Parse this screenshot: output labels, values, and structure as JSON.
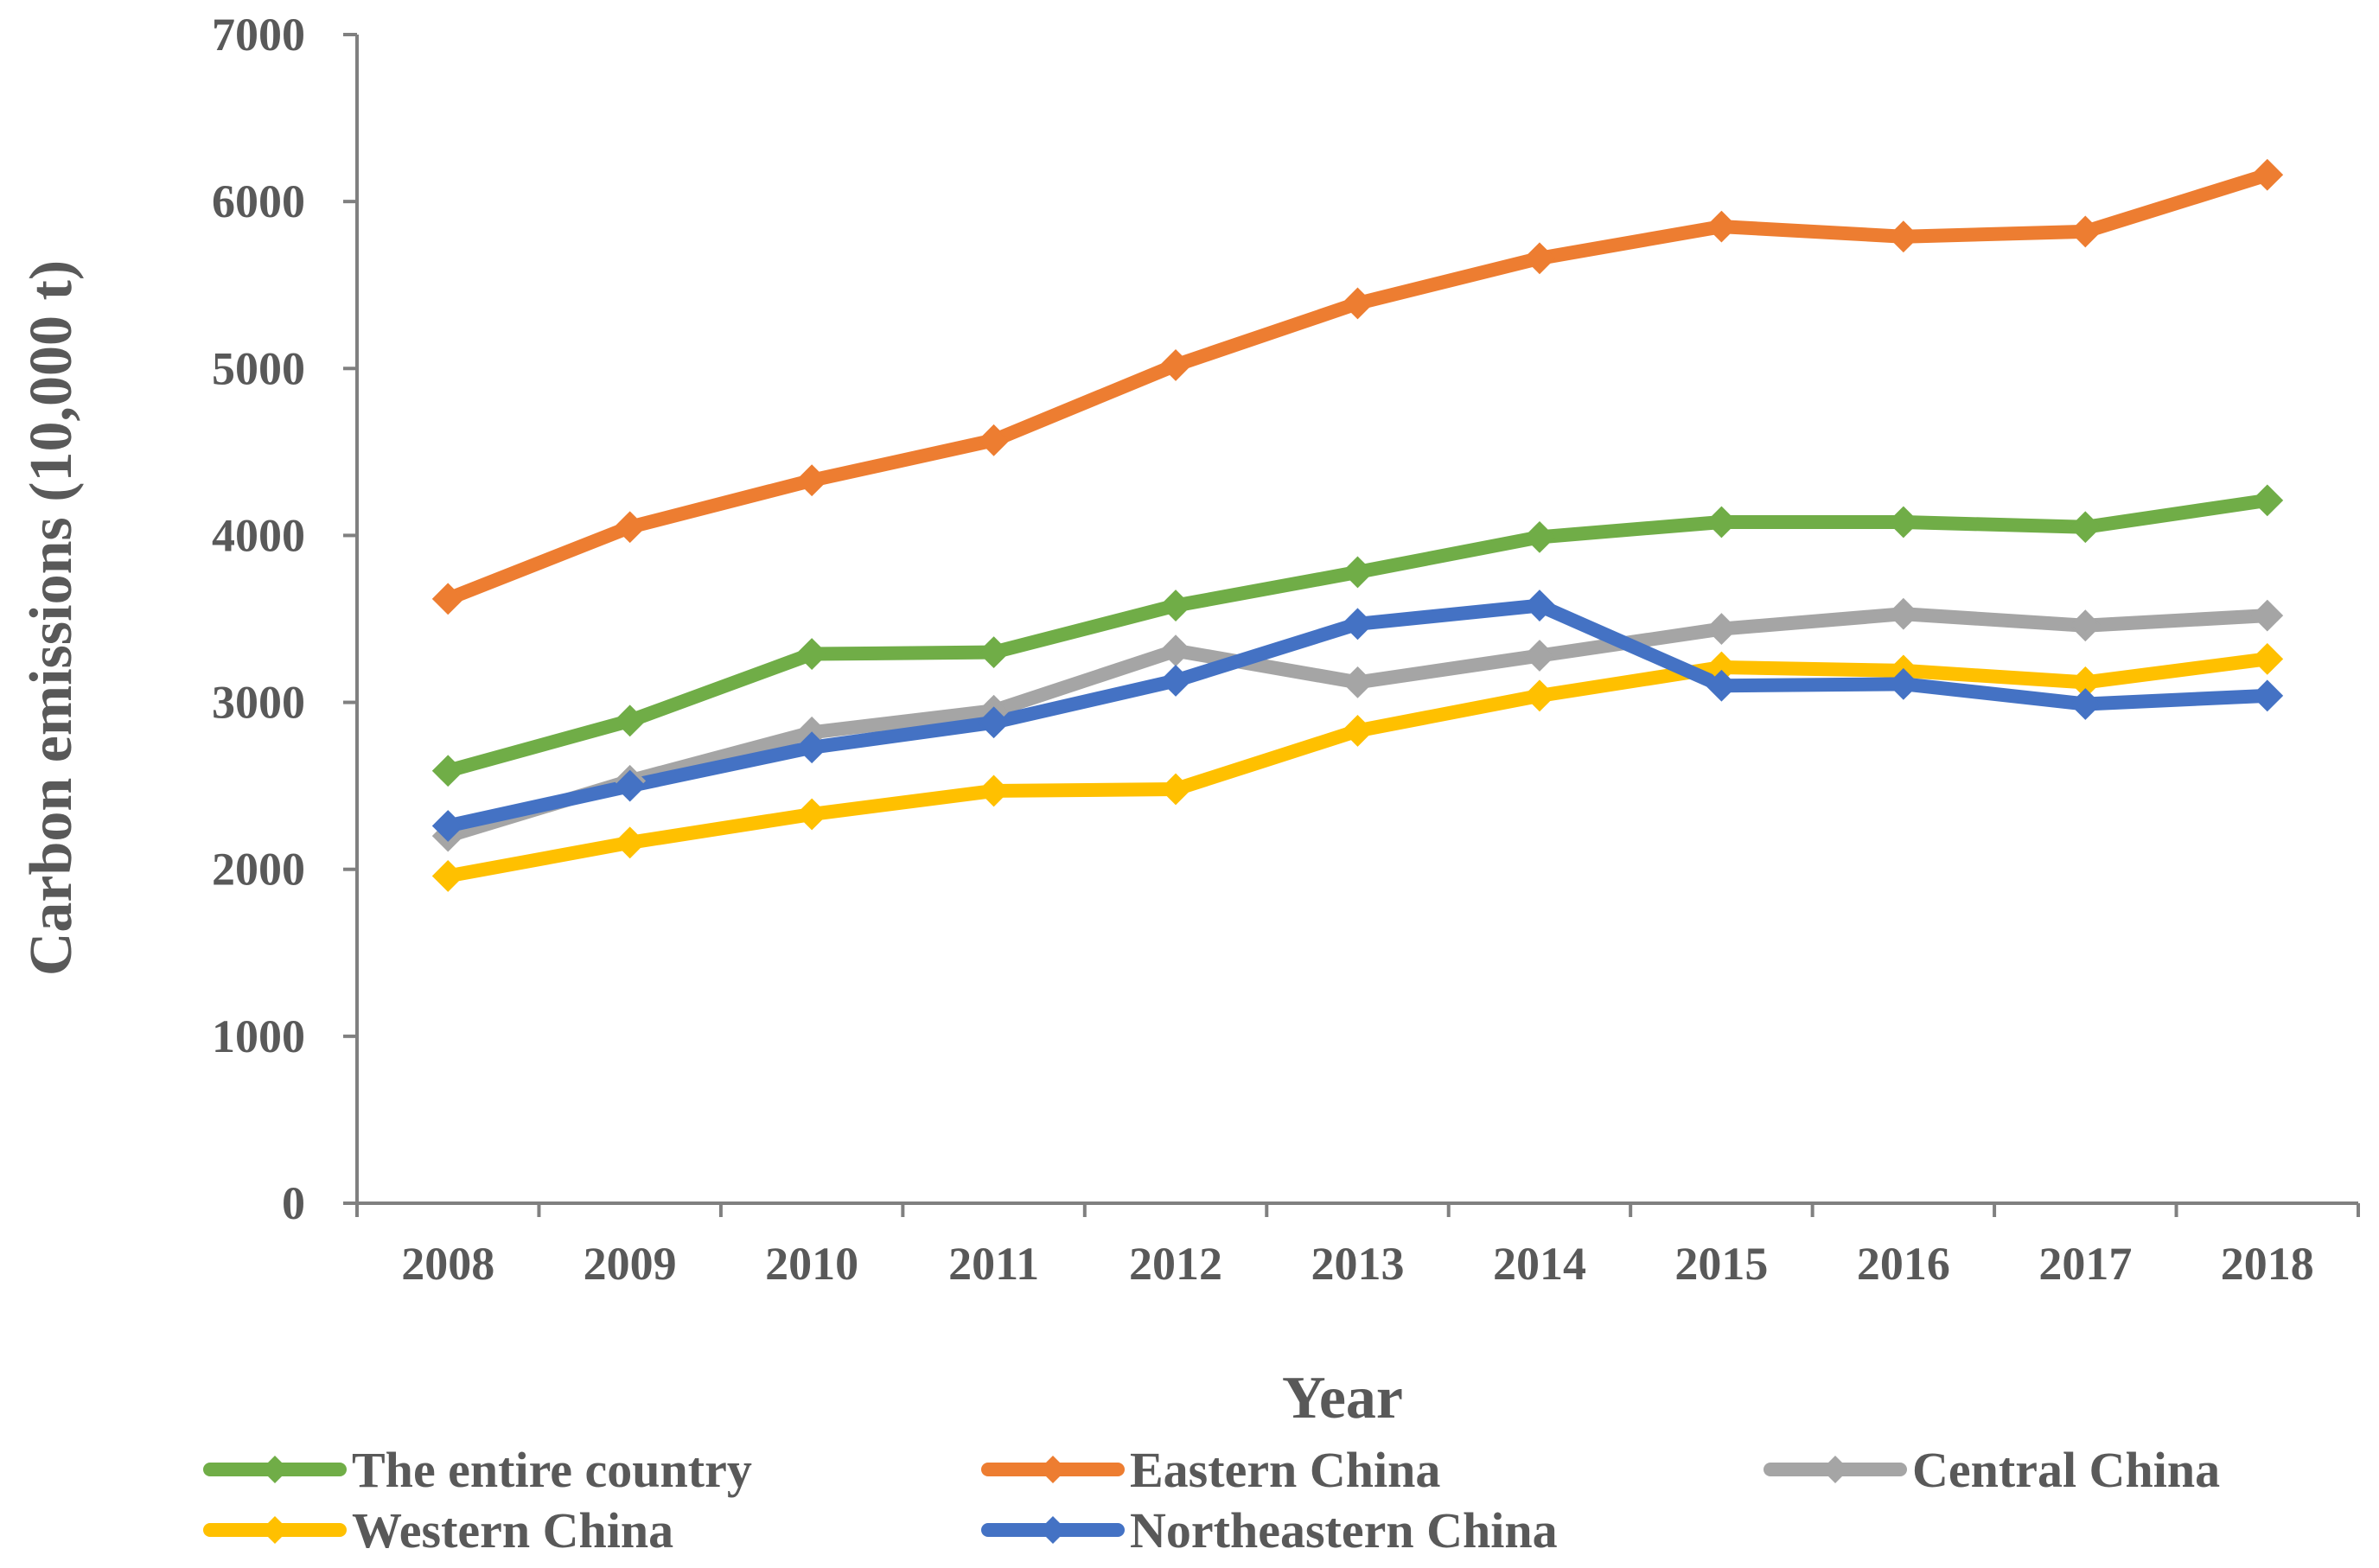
{
  "chart_data": {
    "type": "line",
    "title": "",
    "xlabel": "Year",
    "ylabel": "Carbon emissions (10,000 t)",
    "ylim": [
      0,
      7000
    ],
    "yticks": [
      0,
      1000,
      2000,
      3000,
      4000,
      5000,
      6000,
      7000
    ],
    "grid": false,
    "legend_position": "bottom",
    "categories": [
      "2008",
      "2009",
      "2010",
      "2011",
      "2012",
      "2013",
      "2014",
      "2015",
      "2016",
      "2017",
      "2018"
    ],
    "series": [
      {
        "name": "The entire country",
        "color": "#70ad47",
        "marker": "diamond",
        "values": [
          2590,
          2890,
          3290,
          3300,
          3580,
          3780,
          3990,
          4080,
          4080,
          4050,
          4210
        ]
      },
      {
        "name": "Eastern China",
        "color": "#ed7d31",
        "marker": "diamond",
        "values": [
          3620,
          4050,
          4330,
          4570,
          5020,
          5390,
          5660,
          5850,
          5790,
          5820,
          6160
        ]
      },
      {
        "name": "Central China",
        "color": "#a5a5a5",
        "marker": "diamond",
        "values": [
          2200,
          2530,
          2820,
          2950,
          3310,
          3120,
          3280,
          3440,
          3530,
          3460,
          3520
        ]
      },
      {
        "name": "Western China",
        "color": "#ffc000",
        "marker": "diamond",
        "values": [
          1960,
          2160,
          2330,
          2470,
          2480,
          2830,
          3040,
          3210,
          3190,
          3120,
          3260
        ]
      },
      {
        "name": "Northeastern China",
        "color": "#4472c4",
        "marker": "diamond",
        "values": [
          2260,
          2500,
          2730,
          2880,
          3130,
          3470,
          3580,
          3100,
          3110,
          2990,
          3040
        ]
      }
    ]
  }
}
